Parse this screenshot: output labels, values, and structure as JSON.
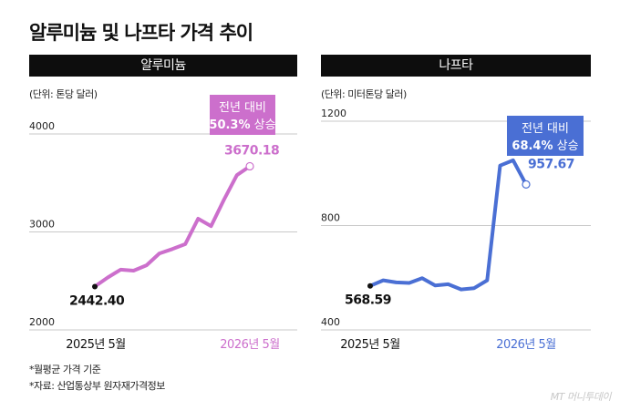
{
  "title": "알루미늄 및 나프타 가격 추이",
  "chart_data": [
    {
      "type": "line",
      "title": "알루미늄",
      "unit": "(단위: 톤당 달러)",
      "ylim": [
        2000,
        4000
      ],
      "yticks": [
        2000,
        3000,
        4000
      ],
      "x_start_label": "2025년 5월",
      "x_end_label": "2026년 5월",
      "start_value_label": "2442.40",
      "end_value_label": "3670.18",
      "annotation": {
        "line1": "전년 대비",
        "line2_bold": "50.3%",
        "line2_rest": " 상승"
      },
      "color": "#cc6fcc",
      "values": [
        2442.4,
        2535,
        2615,
        2605,
        2660,
        2780,
        2825,
        2875,
        3135,
        3060,
        3330,
        3580,
        3670.18
      ]
    },
    {
      "type": "line",
      "title": "나프타",
      "unit": "(단위: 미터톤당 달러)",
      "ylim": [
        400,
        1200
      ],
      "yticks": [
        400,
        800,
        1200
      ],
      "x_start_label": "2025년 5월",
      "x_end_label": "2026년 5월",
      "start_value_label": "568.59",
      "end_value_label": "957.67",
      "annotation": {
        "line1": "전년 대비",
        "line2_bold": "68.4%",
        "line2_rest": " 상승"
      },
      "color": "#4a6fd4",
      "values": [
        568.59,
        590,
        582,
        580,
        598,
        570,
        575,
        555,
        560,
        590,
        1030,
        1050,
        957.67
      ]
    }
  ],
  "footnotes": [
    "*월평균 가격 기준",
    "*자료: 산업통상부 원자재가격정보"
  ],
  "credit": "MT 머니투데이"
}
